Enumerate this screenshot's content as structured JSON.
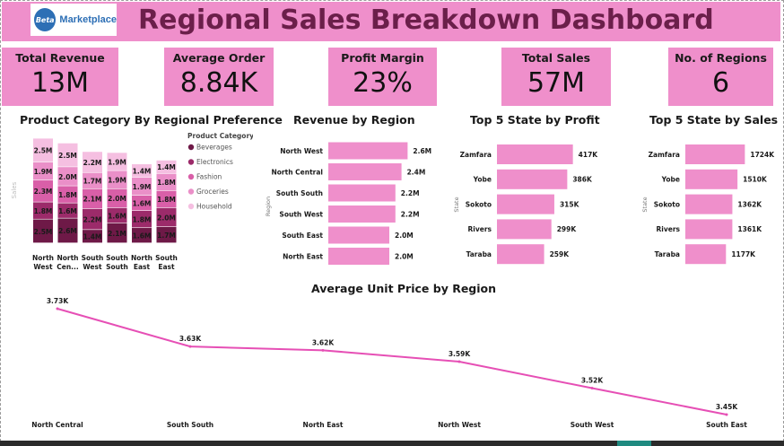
{
  "header": {
    "logo_mark": "Beta",
    "logo_text": "Marketplace",
    "title": "Regional Sales Breakdown Dashboard"
  },
  "kpis": [
    {
      "label": "Total Revenue",
      "value": "13M"
    },
    {
      "label": "Average Order",
      "value": "8.84K"
    },
    {
      "label": "Profit Margin",
      "value": "23%"
    },
    {
      "label": "Total Sales",
      "value": "57M"
    },
    {
      "label": "No. of Regions",
      "value": "6"
    }
  ],
  "colors": {
    "header_bg": "#ef8fcb",
    "title_text": "#6b1f4a",
    "bar_pink": "#ef8fcb",
    "line_pink": "#e64fb5",
    "stack": [
      "#6e1947",
      "#9c2b6a",
      "#d95fa8",
      "#ea8fc8",
      "#f5bfe1"
    ]
  },
  "chart_data": [
    {
      "id": "stacked",
      "type": "bar",
      "stacked": true,
      "title": "Product Category By Regional Preference",
      "ylabel": "Sales",
      "legend_title": "Product Category",
      "legend_position": "right",
      "categories": [
        [
          "North",
          "West"
        ],
        [
          "North",
          "Cen..."
        ],
        [
          "South",
          "West"
        ],
        [
          "South",
          "South"
        ],
        [
          "North",
          "East"
        ],
        [
          "South",
          "East"
        ]
      ],
      "series": [
        {
          "name": "Beverages",
          "values": [
            2.5,
            2.6,
            1.4,
            2.1,
            1.6,
            1.7
          ],
          "labels": [
            "2.5M",
            "2.6M",
            "1.4M",
            "2.1M",
            "1.6M",
            "1.7M"
          ]
        },
        {
          "name": "Electronics",
          "values": [
            1.8,
            1.6,
            2.2,
            1.6,
            1.8,
            2.0
          ],
          "labels": [
            "1.8M",
            "1.6M",
            "2.2M",
            "1.6M",
            "1.8M",
            "2.0M"
          ]
        },
        {
          "name": "Fashion",
          "values": [
            2.3,
            1.8,
            2.1,
            2.0,
            1.6,
            1.8
          ],
          "labels": [
            "2.3M",
            "1.8M",
            "2.1M",
            "2.0M",
            "1.6M",
            "1.8M"
          ]
        },
        {
          "name": "Groceries",
          "values": [
            1.9,
            2.0,
            1.7,
            1.9,
            1.9,
            1.8
          ],
          "labels": [
            "1.9M",
            "2.0M",
            "1.7M",
            "1.9M",
            "1.9M",
            "1.8M"
          ]
        },
        {
          "name": "Household",
          "values": [
            2.5,
            2.5,
            2.2,
            1.9,
            1.4,
            1.4
          ],
          "labels": [
            "2.5M",
            "2.5M",
            "2.2M",
            "1.9M",
            "1.4M",
            "1.4M"
          ]
        }
      ]
    },
    {
      "id": "revenue",
      "type": "bar",
      "orientation": "horizontal",
      "title": "Revenue by Region",
      "ylabel": "Region",
      "categories": [
        "North West",
        "North Central",
        "South South",
        "South West",
        "South East",
        "North East"
      ],
      "values": [
        2.6,
        2.4,
        2.2,
        2.2,
        2.0,
        2.0
      ],
      "labels": [
        "2.6M",
        "2.4M",
        "2.2M",
        "2.2M",
        "2.0M",
        "2.0M"
      ]
    },
    {
      "id": "profit",
      "type": "bar",
      "orientation": "horizontal",
      "title": "Top 5 State by Profit",
      "ylabel": "State",
      "categories": [
        "Zamfara",
        "Yobe",
        "Sokoto",
        "Rivers",
        "Taraba"
      ],
      "values": [
        417,
        386,
        315,
        299,
        259
      ],
      "labels": [
        "417K",
        "386K",
        "315K",
        "299K",
        "259K"
      ]
    },
    {
      "id": "sales",
      "type": "bar",
      "orientation": "horizontal",
      "title": "Top 5 State by Sales",
      "ylabel": "State",
      "categories": [
        "Zamfara",
        "Yobe",
        "Sokoto",
        "Rivers",
        "Taraba"
      ],
      "values": [
        1724,
        1510,
        1362,
        1361,
        1177
      ],
      "labels": [
        "1724K",
        "1510K",
        "1362K",
        "1361K",
        "1177K"
      ]
    },
    {
      "id": "unitprice",
      "type": "line",
      "title": "Average Unit Price by Region",
      "categories": [
        "North Central",
        "South South",
        "North East",
        "North West",
        "South West",
        "South East"
      ],
      "values": [
        3.73,
        3.63,
        3.62,
        3.59,
        3.52,
        3.45
      ],
      "labels": [
        "3.73K",
        "3.63K",
        "3.62K",
        "3.59K",
        "3.52K",
        "3.45K"
      ]
    }
  ]
}
